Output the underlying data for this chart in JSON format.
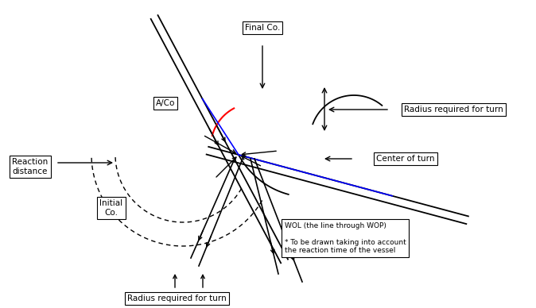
{
  "background": "#ffffff",
  "labels": {
    "final_co": "Final Co.",
    "a_co": "A/Co",
    "initial_co": "Initial\nCo.",
    "reaction_distance": "Reaction\ndistance",
    "center_of_turn": "Center of turn",
    "radius_right": "Radius required for turn",
    "radius_bottom": "Radius required for turn",
    "wol_text": "WOL (the line through WOP)\n\n* To be drawn taking into account\nthe reaction time of the vessel"
  },
  "figsize": [
    6.74,
    3.88
  ],
  "dpi": 100
}
